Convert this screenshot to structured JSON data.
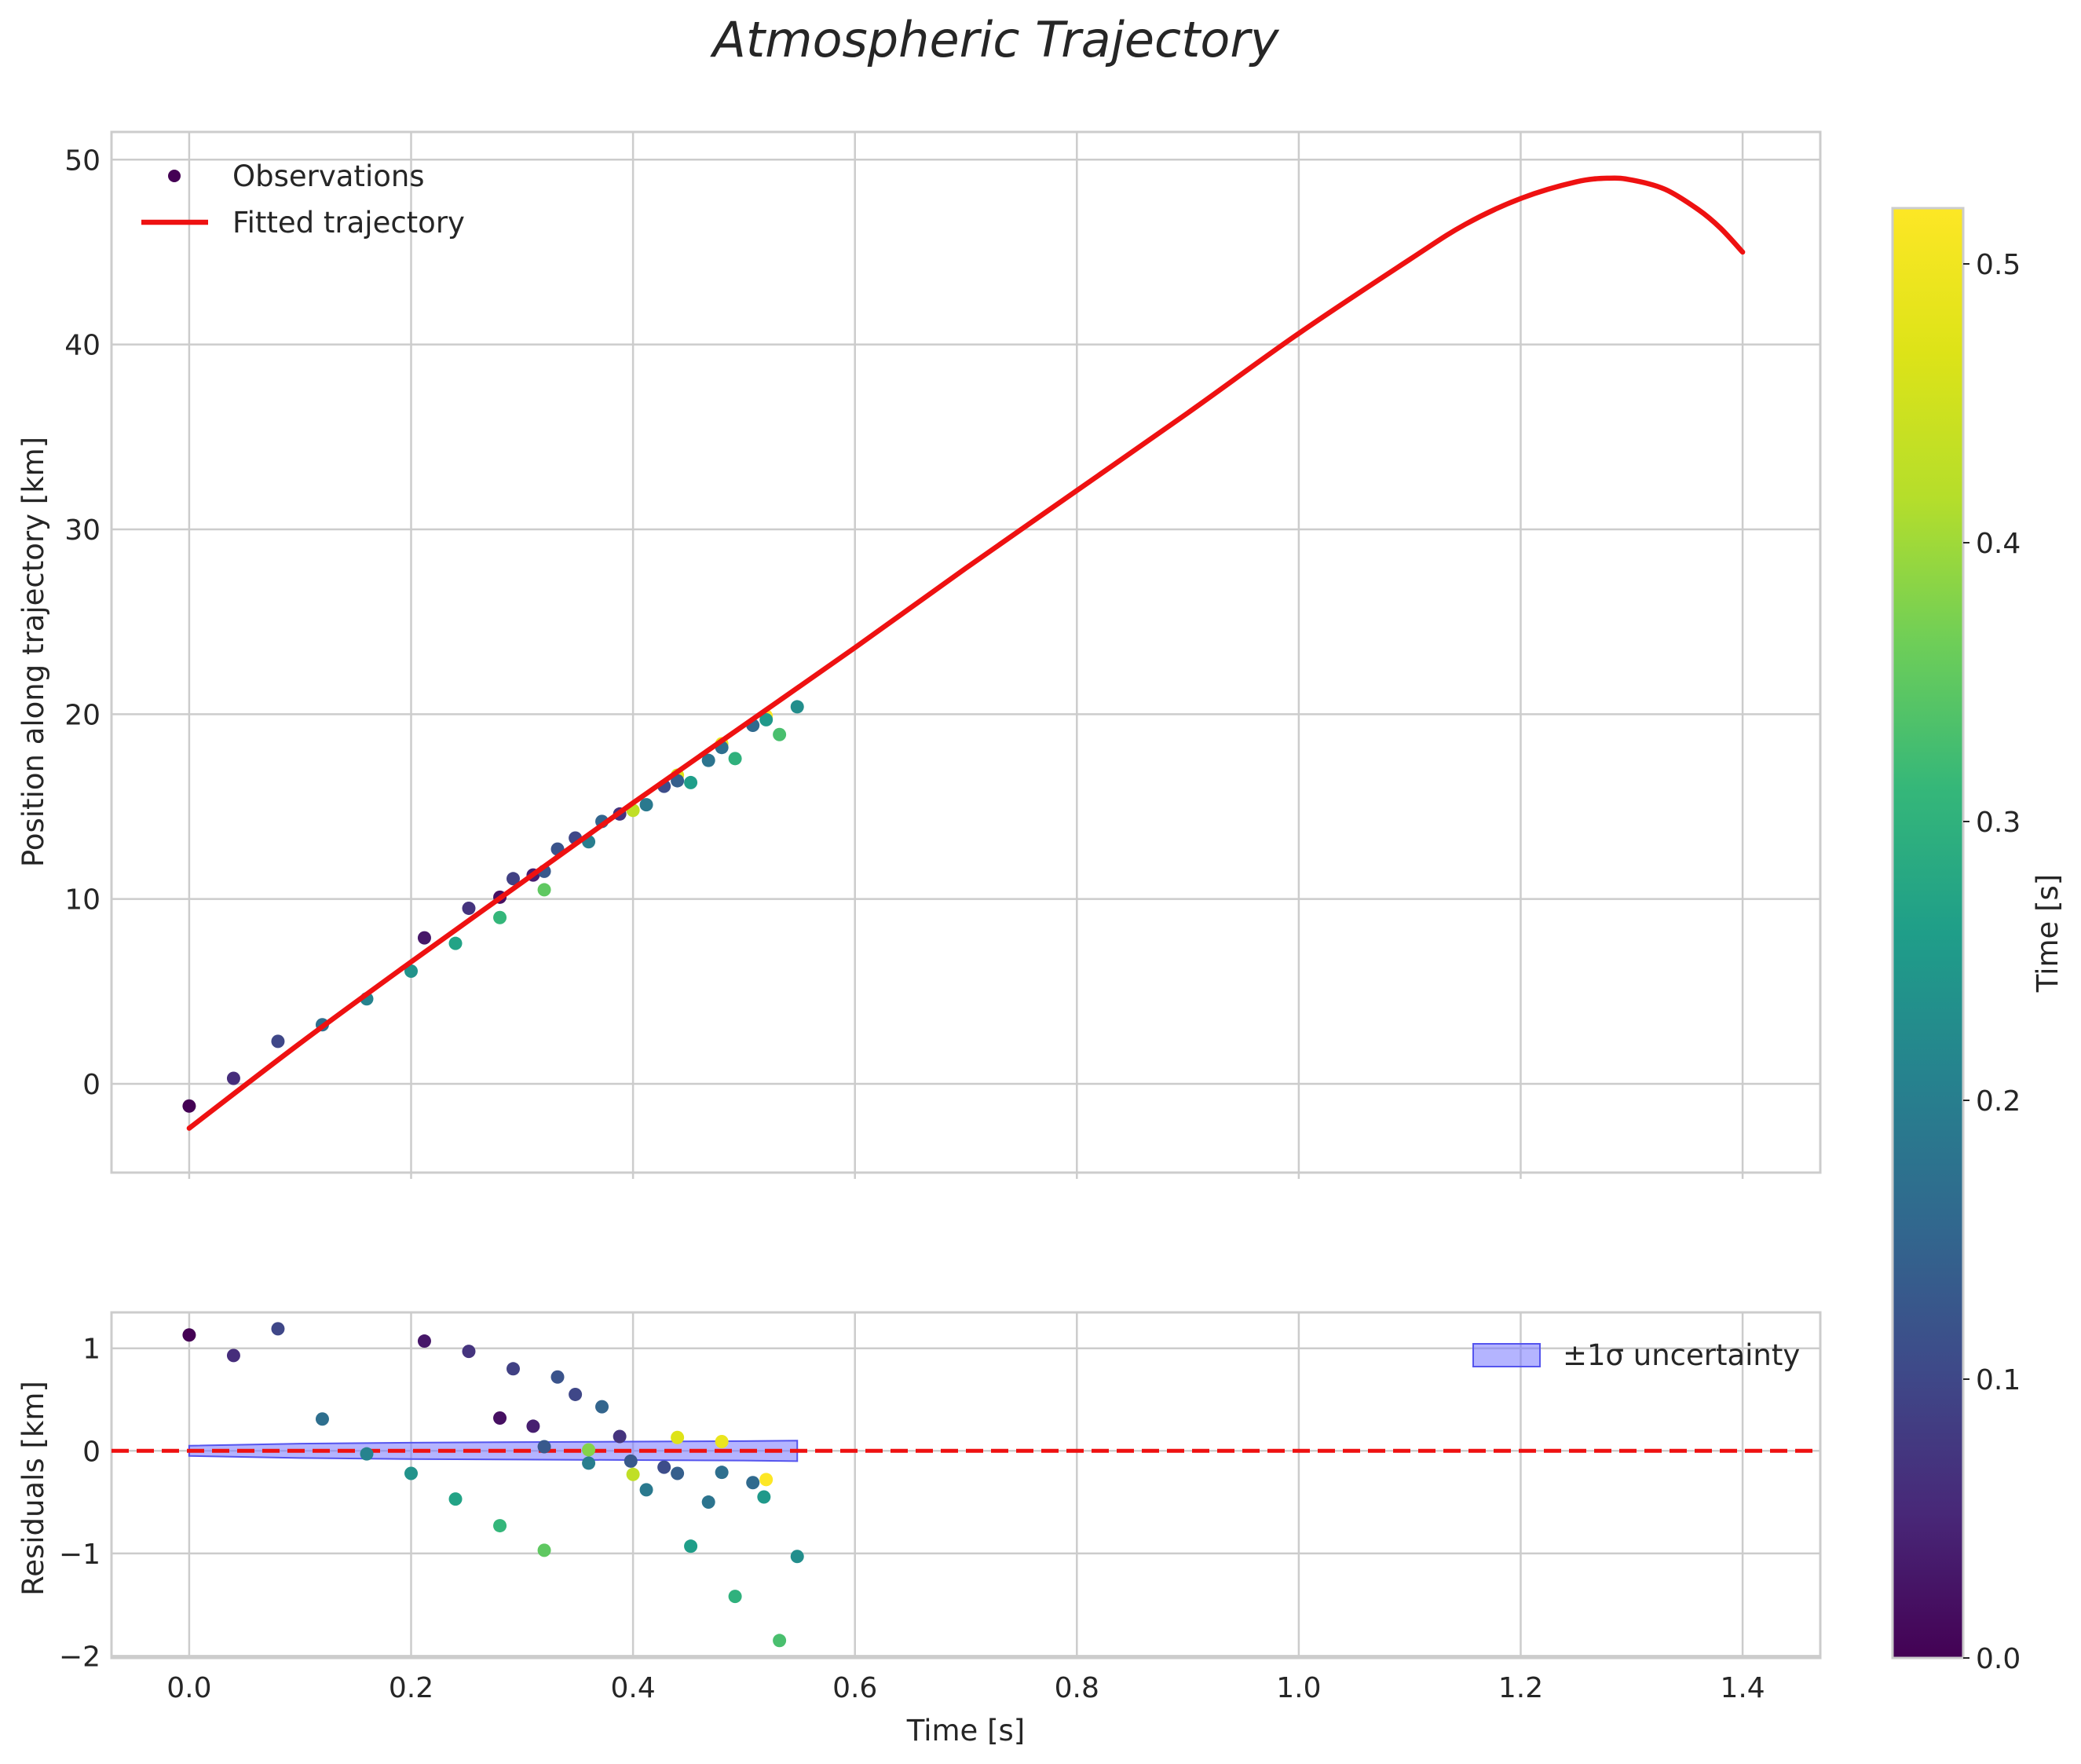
{
  "chart_data": {
    "title": "Atmospheric Trajectory",
    "xlabel": "Time [s]",
    "xlim": [
      -0.07,
      1.47
    ],
    "xticks": [
      0.0,
      0.2,
      0.4,
      0.6,
      0.8,
      1.0,
      1.2,
      1.4
    ],
    "xtick_labels": [
      "0.0",
      "0.2",
      "0.4",
      "0.6",
      "0.8",
      "1.0",
      "1.2",
      "1.4"
    ],
    "colormap": "viridis",
    "colorbar": {
      "label": "Time [s]",
      "range": [
        0.0,
        0.52
      ],
      "ticks": [
        0.0,
        0.1,
        0.2,
        0.3,
        0.4,
        0.5
      ],
      "tick_labels": [
        "0.0",
        "0.1",
        "0.2",
        "0.3",
        "0.4",
        "0.5"
      ]
    },
    "panels": [
      {
        "type": "scatter+line",
        "ylabel": "Position along trajectory [km]",
        "ylim": [
          -4.8,
          51.5
        ],
        "yticks": [
          0,
          10,
          20,
          30,
          40,
          50
        ],
        "ytick_labels": [
          "0",
          "10",
          "20",
          "30",
          "40",
          "50"
        ],
        "legend": [
          "Observations",
          "Fitted trajectory"
        ],
        "legend_position": "top-left",
        "fitted_trajectory": {
          "color": "#ee1111",
          "x": [
            0.0,
            0.1,
            0.2,
            0.3,
            0.4,
            0.5,
            0.6,
            0.7,
            0.8,
            0.9,
            1.0,
            1.1,
            1.15,
            1.2,
            1.25,
            1.28,
            1.3,
            1.33,
            1.36,
            1.38,
            1.4
          ],
          "y": [
            -2.4,
            2.2,
            6.6,
            10.9,
            15.2,
            19.4,
            23.6,
            27.9,
            32.1,
            36.3,
            40.6,
            44.6,
            46.5,
            47.9,
            48.8,
            49.0,
            48.9,
            48.4,
            47.3,
            46.3,
            45.0
          ]
        },
        "observations": [
          {
            "x": 0.0,
            "y": -1.2,
            "c": 0.0
          },
          {
            "x": 0.04,
            "y": 0.3,
            "c": 0.06
          },
          {
            "x": 0.08,
            "y": 2.3,
            "c": 0.1
          },
          {
            "x": 0.12,
            "y": 3.2,
            "c": 0.17
          },
          {
            "x": 0.16,
            "y": 4.6,
            "c": 0.21
          },
          {
            "x": 0.2,
            "y": 6.1,
            "c": 0.24
          },
          {
            "x": 0.212,
            "y": 7.9,
            "c": 0.03
          },
          {
            "x": 0.24,
            "y": 7.6,
            "c": 0.27
          },
          {
            "x": 0.252,
            "y": 9.5,
            "c": 0.07
          },
          {
            "x": 0.28,
            "y": 9.0,
            "c": 0.31
          },
          {
            "x": 0.28,
            "y": 10.1,
            "c": 0.02
          },
          {
            "x": 0.292,
            "y": 11.1,
            "c": 0.09
          },
          {
            "x": 0.31,
            "y": 11.3,
            "c": 0.04
          },
          {
            "x": 0.32,
            "y": 10.5,
            "c": 0.35
          },
          {
            "x": 0.32,
            "y": 11.5,
            "c": 0.13
          },
          {
            "x": 0.332,
            "y": 12.7,
            "c": 0.12
          },
          {
            "x": 0.348,
            "y": 13.3,
            "c": 0.1
          },
          {
            "x": 0.36,
            "y": 13.1,
            "c": 0.2
          },
          {
            "x": 0.372,
            "y": 14.2,
            "c": 0.15
          },
          {
            "x": 0.388,
            "y": 14.6,
            "c": 0.07
          },
          {
            "x": 0.4,
            "y": 14.8,
            "c": 0.43
          },
          {
            "x": 0.412,
            "y": 15.1,
            "c": 0.19
          },
          {
            "x": 0.428,
            "y": 16.1,
            "c": 0.11
          },
          {
            "x": 0.44,
            "y": 16.7,
            "c": 0.47
          },
          {
            "x": 0.44,
            "y": 16.4,
            "c": 0.14
          },
          {
            "x": 0.452,
            "y": 16.3,
            "c": 0.26
          },
          {
            "x": 0.468,
            "y": 17.5,
            "c": 0.18
          },
          {
            "x": 0.48,
            "y": 18.4,
            "c": 0.49
          },
          {
            "x": 0.48,
            "y": 18.2,
            "c": 0.17
          },
          {
            "x": 0.492,
            "y": 17.6,
            "c": 0.3
          },
          {
            "x": 0.508,
            "y": 19.4,
            "c": 0.16
          },
          {
            "x": 0.52,
            "y": 19.9,
            "c": 0.52
          },
          {
            "x": 0.52,
            "y": 19.7,
            "c": 0.25
          },
          {
            "x": 0.532,
            "y": 18.9,
            "c": 0.33
          },
          {
            "x": 0.548,
            "y": 20.4,
            "c": 0.23
          }
        ]
      },
      {
        "type": "scatter",
        "ylabel": "Residuals [km]",
        "ylim": [
          -2.02,
          1.35
        ],
        "yticks": [
          -2,
          -1,
          0,
          1
        ],
        "ytick_labels": [
          "−2",
          "−1",
          "0",
          "1"
        ],
        "legend": [
          "±1σ uncertainty"
        ],
        "legend_position": "top-right",
        "zero_line": {
          "y": 0,
          "color": "#ee1111",
          "style": "dashed"
        },
        "uncertainty_band": {
          "color": "#7777ff",
          "x": [
            0.0,
            0.1,
            0.2,
            0.3,
            0.4,
            0.5,
            0.548
          ],
          "upper": [
            0.05,
            0.07,
            0.08,
            0.085,
            0.09,
            0.095,
            0.1
          ],
          "lower": [
            -0.05,
            -0.07,
            -0.08,
            -0.085,
            -0.09,
            -0.095,
            -0.1
          ]
        },
        "residuals": [
          {
            "x": 0.0,
            "y": 1.13,
            "c": 0.0
          },
          {
            "x": 0.04,
            "y": 0.93,
            "c": 0.06
          },
          {
            "x": 0.08,
            "y": 1.19,
            "c": 0.1
          },
          {
            "x": 0.12,
            "y": 0.31,
            "c": 0.17
          },
          {
            "x": 0.16,
            "y": -0.03,
            "c": 0.21
          },
          {
            "x": 0.2,
            "y": -0.22,
            "c": 0.24
          },
          {
            "x": 0.212,
            "y": 1.07,
            "c": 0.03
          },
          {
            "x": 0.24,
            "y": -0.47,
            "c": 0.27
          },
          {
            "x": 0.252,
            "y": 0.97,
            "c": 0.07
          },
          {
            "x": 0.28,
            "y": -0.73,
            "c": 0.31
          },
          {
            "x": 0.28,
            "y": 0.32,
            "c": 0.02
          },
          {
            "x": 0.292,
            "y": 0.8,
            "c": 0.09
          },
          {
            "x": 0.31,
            "y": 0.24,
            "c": 0.04
          },
          {
            "x": 0.32,
            "y": -0.97,
            "c": 0.35
          },
          {
            "x": 0.32,
            "y": 0.04,
            "c": 0.13
          },
          {
            "x": 0.332,
            "y": 0.72,
            "c": 0.12
          },
          {
            "x": 0.348,
            "y": 0.55,
            "c": 0.1
          },
          {
            "x": 0.36,
            "y": -0.12,
            "c": 0.2
          },
          {
            "x": 0.36,
            "y": 0.01,
            "c": 0.38
          },
          {
            "x": 0.372,
            "y": 0.43,
            "c": 0.15
          },
          {
            "x": 0.388,
            "y": 0.14,
            "c": 0.07
          },
          {
            "x": 0.398,
            "y": -0.1,
            "c": 0.13
          },
          {
            "x": 0.4,
            "y": -0.23,
            "c": 0.43
          },
          {
            "x": 0.412,
            "y": -0.38,
            "c": 0.19
          },
          {
            "x": 0.428,
            "y": -0.16,
            "c": 0.11
          },
          {
            "x": 0.44,
            "y": 0.13,
            "c": 0.47
          },
          {
            "x": 0.44,
            "y": -0.22,
            "c": 0.14
          },
          {
            "x": 0.452,
            "y": -0.93,
            "c": 0.26
          },
          {
            "x": 0.468,
            "y": -0.5,
            "c": 0.18
          },
          {
            "x": 0.48,
            "y": 0.09,
            "c": 0.49
          },
          {
            "x": 0.48,
            "y": -0.21,
            "c": 0.17
          },
          {
            "x": 0.492,
            "y": -1.42,
            "c": 0.3
          },
          {
            "x": 0.508,
            "y": -0.31,
            "c": 0.16
          },
          {
            "x": 0.518,
            "y": -0.45,
            "c": 0.25
          },
          {
            "x": 0.52,
            "y": -0.28,
            "c": 0.52
          },
          {
            "x": 0.532,
            "y": -1.85,
            "c": 0.33
          },
          {
            "x": 0.548,
            "y": -1.03,
            "c": 0.23
          }
        ]
      }
    ]
  }
}
